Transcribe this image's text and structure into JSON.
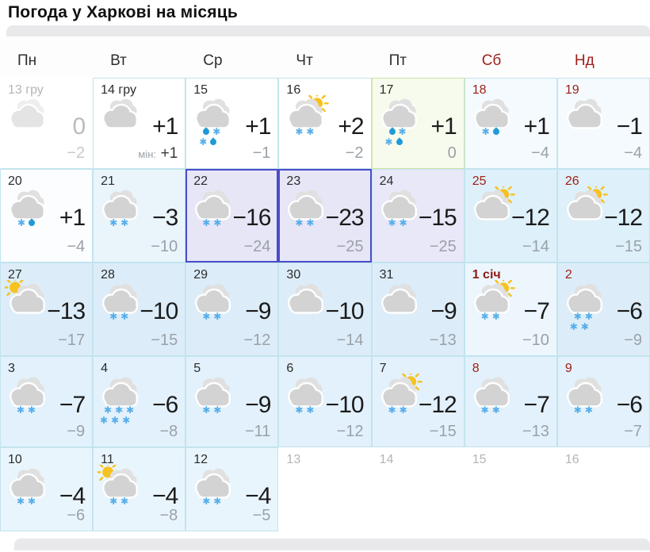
{
  "title": "Погода у Харкові на місяць",
  "weekdays": [
    {
      "label": "Пн",
      "weekend": false
    },
    {
      "label": "Вт",
      "weekend": false
    },
    {
      "label": "Ср",
      "weekend": false
    },
    {
      "label": "Чт",
      "weekend": false
    },
    {
      "label": "Пт",
      "weekend": false
    },
    {
      "label": "Сб",
      "weekend": true
    },
    {
      "label": "Нд",
      "weekend": true
    }
  ],
  "icons": {
    "snowflake": "✱",
    "raindrop": "css-teardrop",
    "cloud": "cloud-shape",
    "sun": "sun-disc"
  },
  "colors": {
    "weekend_red": "#9c1f1a",
    "severe_frost_border": "#4b4cc7",
    "grid_line": "#c2e4ee",
    "holiday_green_bg": "#f7fbee",
    "frost_lavender_bg": "#e7e6f7"
  },
  "cells": [
    {
      "date": "13 гру",
      "ds": "g",
      "variant": "past",
      "icon": "cloud",
      "precip": [],
      "tmax": "0",
      "tmin": "−2"
    },
    {
      "date": "14 гру",
      "ds": "n",
      "variant": "white",
      "icon": "cloud",
      "precip": [],
      "tmax": "+1",
      "minpfx": "мін:",
      "tmin": "+1"
    },
    {
      "date": "15",
      "ds": "n",
      "variant": "white",
      "icon": "cloud",
      "precip": [
        [
          "d",
          "s"
        ],
        [
          "s",
          "d"
        ]
      ],
      "tmax": "+1",
      "tmin": "−1"
    },
    {
      "date": "16",
      "ds": "n",
      "variant": "white",
      "icon": "sun-cloud",
      "precip": [
        [
          "s",
          "s"
        ]
      ],
      "tmax": "+2",
      "tmin": "−2"
    },
    {
      "date": "17",
      "ds": "n",
      "variant": "green",
      "icon": "cloud",
      "precip": [
        [
          "d",
          "s"
        ],
        [
          "s",
          "d"
        ]
      ],
      "tmax": "+1",
      "tmin": "0"
    },
    {
      "date": "18",
      "ds": "r",
      "variant": "mist",
      "icon": "cloud",
      "precip": [
        [
          "s",
          "d"
        ]
      ],
      "tmax": "+1",
      "tmin": "−4"
    },
    {
      "date": "19",
      "ds": "r",
      "variant": "mist",
      "icon": "cloud",
      "precip": [],
      "tmax": "−1",
      "tmin": "−4"
    },
    {
      "date": "20",
      "ds": "n",
      "variant": "near",
      "icon": "cloud",
      "precip": [
        [
          "s",
          "d"
        ]
      ],
      "tmax": "+1",
      "tmin": "−4"
    },
    {
      "date": "21",
      "ds": "n",
      "variant": "blue1",
      "icon": "cloud",
      "precip": [
        [
          "s",
          "s"
        ]
      ],
      "tmax": "−3",
      "tmin": "−10"
    },
    {
      "date": "22",
      "ds": "n",
      "variant": "severe",
      "icon": "cloud",
      "precip": [
        [
          "s",
          "s"
        ]
      ],
      "tmax": "−16",
      "tmin": "−24"
    },
    {
      "date": "23",
      "ds": "n",
      "variant": "severe",
      "icon": "cloud",
      "precip": [
        [
          "s",
          "s"
        ]
      ],
      "tmax": "−23",
      "tmin": "−25"
    },
    {
      "date": "24",
      "ds": "n",
      "variant": "lav",
      "icon": "cloud",
      "precip": [
        [
          "s",
          "s"
        ]
      ],
      "tmax": "−15",
      "tmin": "−25"
    },
    {
      "date": "25",
      "ds": "r",
      "variant": "blue2",
      "icon": "sun-cloud",
      "precip": [],
      "tmax": "−12",
      "tmin": "−14"
    },
    {
      "date": "26",
      "ds": "r",
      "variant": "blue2",
      "icon": "sun-cloud",
      "precip": [],
      "tmax": "−12",
      "tmin": "−15"
    },
    {
      "date": "27",
      "ds": "n",
      "variant": "blue3",
      "icon": "sunleft-cloud",
      "precip": [],
      "tmax": "−13",
      "tmin": "−17"
    },
    {
      "date": "28",
      "ds": "n",
      "variant": "blue3",
      "icon": "cloud",
      "precip": [
        [
          "s",
          "s"
        ]
      ],
      "tmax": "−10",
      "tmin": "−15"
    },
    {
      "date": "29",
      "ds": "n",
      "variant": "blue3",
      "icon": "cloud",
      "precip": [
        [
          "s",
          "s"
        ]
      ],
      "tmax": "−9",
      "tmin": "−12"
    },
    {
      "date": "30",
      "ds": "n",
      "variant": "blue3",
      "icon": "cloud",
      "precip": [],
      "tmax": "−10",
      "tmin": "−14"
    },
    {
      "date": "31",
      "ds": "n",
      "variant": "blue3",
      "icon": "cloud",
      "precip": [],
      "tmax": "−9",
      "tmin": "−13"
    },
    {
      "date": "1 січ",
      "ds": "rb",
      "variant": "blue1b",
      "icon": "sun-cloud",
      "precip": [
        [
          "s",
          "s"
        ]
      ],
      "tmax": "−7",
      "tmin": "−10"
    },
    {
      "date": "2",
      "ds": "r",
      "variant": "blue3",
      "icon": "cloud",
      "precip": [
        [
          "s",
          "s"
        ],
        [
          "s",
          "s"
        ]
      ],
      "tmax": "−6",
      "tmin": "−9"
    },
    {
      "date": "3",
      "ds": "n",
      "variant": "blue4",
      "icon": "cloud",
      "precip": [
        [
          "s",
          "s"
        ]
      ],
      "tmax": "−7",
      "tmin": "−9"
    },
    {
      "date": "4",
      "ds": "n",
      "variant": "blue4",
      "icon": "cloud",
      "precip": [
        [
          "s",
          "s",
          "s"
        ],
        [
          "s",
          "s",
          "s"
        ]
      ],
      "tmax": "−6",
      "tmin": "−8"
    },
    {
      "date": "5",
      "ds": "n",
      "variant": "blue4",
      "icon": "cloud",
      "precip": [
        [
          "s",
          "s"
        ]
      ],
      "tmax": "−9",
      "tmin": "−11"
    },
    {
      "date": "6",
      "ds": "n",
      "variant": "blue4",
      "icon": "cloud",
      "precip": [
        [
          "s",
          "s"
        ]
      ],
      "tmax": "−10",
      "tmin": "−12"
    },
    {
      "date": "7",
      "ds": "n",
      "variant": "blue4",
      "icon": "sun-cloud",
      "precip": [
        [
          "s",
          "s"
        ]
      ],
      "tmax": "−12",
      "tmin": "−15"
    },
    {
      "date": "8",
      "ds": "r",
      "variant": "blue4",
      "icon": "cloud",
      "precip": [
        [
          "s",
          "s"
        ]
      ],
      "tmax": "−7",
      "tmin": "−13"
    },
    {
      "date": "9",
      "ds": "r",
      "variant": "blue4",
      "icon": "cloud",
      "precip": [
        [
          "s",
          "s"
        ]
      ],
      "tmax": "−6",
      "tmin": "−7"
    },
    {
      "date": "10",
      "ds": "n",
      "variant": "blue5",
      "icon": "cloud",
      "precip": [
        [
          "s",
          "s"
        ]
      ],
      "tmax": "−4",
      "tmin": "−6"
    },
    {
      "date": "11",
      "ds": "n",
      "variant": "blue5",
      "icon": "sunleft-cloud",
      "precip": [
        [
          "s",
          "s"
        ]
      ],
      "tmax": "−4",
      "tmin": "−8"
    },
    {
      "date": "12",
      "ds": "n",
      "variant": "blue5",
      "icon": "cloud",
      "precip": [
        [
          "s",
          "s"
        ]
      ],
      "tmax": "−4",
      "tmin": "−5"
    },
    {
      "date": "13",
      "ds": "g",
      "variant": "next"
    },
    {
      "date": "14",
      "ds": "g",
      "variant": "next"
    },
    {
      "date": "15",
      "ds": "g",
      "variant": "next"
    },
    {
      "date": "16",
      "ds": "g",
      "variant": "next"
    }
  ]
}
